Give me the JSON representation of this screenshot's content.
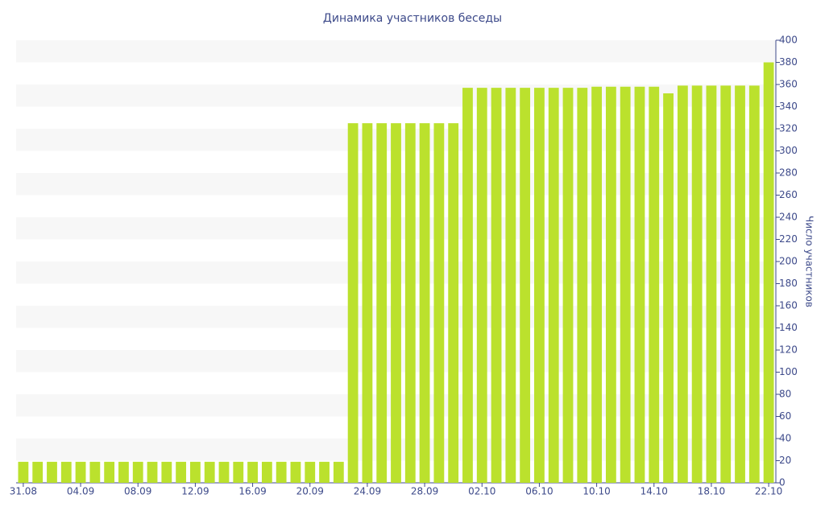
{
  "chart_data": {
    "type": "bar",
    "title": "Динамика участников беседы",
    "y_axis_label": "Число участников",
    "categories": [
      "31.08",
      null,
      null,
      null,
      "04.09",
      null,
      null,
      null,
      "08.09",
      null,
      null,
      null,
      "12.09",
      null,
      null,
      null,
      "16.09",
      null,
      null,
      null,
      "20.09",
      null,
      null,
      null,
      "24.09",
      null,
      null,
      null,
      "28.09",
      null,
      null,
      null,
      "02.10",
      null,
      null,
      null,
      "06.10",
      null,
      null,
      null,
      "10.10",
      null,
      null,
      null,
      "14.10",
      null,
      null,
      null,
      "18.10",
      null,
      null,
      null,
      "22.10"
    ],
    "values": [
      19,
      19,
      19,
      19,
      19,
      19,
      19,
      19,
      19,
      19,
      19,
      19,
      19,
      19,
      19,
      19,
      19,
      19,
      19,
      19,
      19,
      19,
      19,
      325,
      325,
      325,
      325,
      325,
      325,
      325,
      325,
      357,
      357,
      357,
      357,
      357,
      357,
      357,
      357,
      357,
      358,
      358,
      358,
      358,
      358,
      352,
      359,
      359,
      359,
      359,
      359,
      359,
      380
    ],
    "color": "#bbe12d",
    "ylim": [
      0,
      400
    ],
    "yticks": [
      0,
      20,
      40,
      60,
      80,
      100,
      120,
      140,
      160,
      180,
      200,
      220,
      240,
      260,
      280,
      300,
      320,
      340,
      360,
      380,
      400
    ],
    "grid": true
  }
}
